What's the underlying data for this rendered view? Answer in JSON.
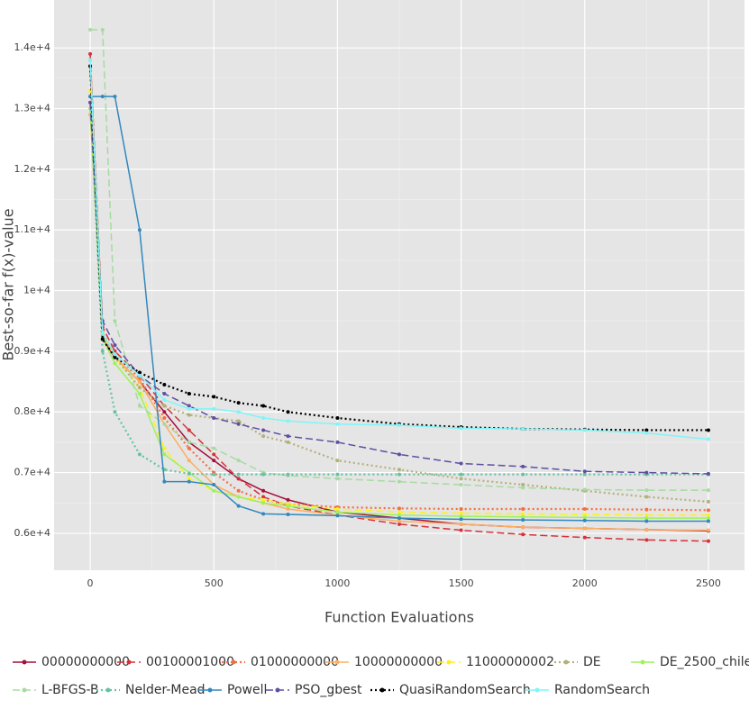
{
  "chart_data": {
    "type": "line",
    "xlabel": "Function Evaluations",
    "ylabel": "Best-so-far f(x)-value",
    "x": [
      0,
      50,
      100,
      200,
      300,
      400,
      500,
      600,
      700,
      800,
      1000,
      1250,
      1500,
      1750,
      2000,
      2250,
      2500
    ],
    "xlim": [
      -146,
      2646
    ],
    "xticks": [
      0,
      500,
      1000,
      1500,
      2000,
      2500
    ],
    "ylim": [
      5390,
      14790
    ],
    "yticks": [
      {
        "value": 6000,
        "label": "0.6e+4"
      },
      {
        "value": 7000,
        "label": "0.7e+4"
      },
      {
        "value": 8000,
        "label": "0.8e+4"
      },
      {
        "value": 9000,
        "label": "0.9e+4"
      },
      {
        "value": 10000,
        "label": "1e+4"
      },
      {
        "value": 11000,
        "label": "1.1e+4"
      },
      {
        "value": 12000,
        "label": "1.2e+4"
      },
      {
        "value": 13000,
        "label": "1.3e+4"
      },
      {
        "value": 14000,
        "label": "1.4e+4"
      }
    ],
    "grid": true,
    "legend": "bottom",
    "series": [
      {
        "name": "00000000000",
        "color": "#a50f3c",
        "dash": "solid",
        "values": [
          13700,
          9200,
          8900,
          8500,
          8000,
          7500,
          7200,
          6900,
          6700,
          6550,
          6350,
          6250,
          6150,
          6100,
          6080,
          6060,
          6040
        ]
      },
      {
        "name": "00100001000",
        "color": "#d7303a",
        "dash": "dash",
        "values": [
          13900,
          9400,
          9000,
          8600,
          8100,
          7700,
          7300,
          6900,
          6600,
          6450,
          6300,
          6150,
          6050,
          5980,
          5930,
          5890,
          5870
        ]
      },
      {
        "name": "01000000000",
        "color": "#f46d43",
        "dash": "dot",
        "values": [
          13800,
          9300,
          8950,
          8550,
          7900,
          7400,
          7000,
          6700,
          6550,
          6480,
          6430,
          6410,
          6400,
          6400,
          6400,
          6390,
          6380
        ]
      },
      {
        "name": "10000000000",
        "color": "#fdae61",
        "dash": "solid",
        "values": [
          12900,
          9300,
          8900,
          8500,
          7800,
          7200,
          6800,
          6600,
          6500,
          6400,
          6300,
          6200,
          6150,
          6100,
          6080,
          6060,
          6050
        ]
      },
      {
        "name": "11000000002",
        "color": "#fef01e",
        "dash": "dash",
        "values": [
          13300,
          9300,
          8900,
          8400,
          7400,
          6900,
          6700,
          6600,
          6550,
          6480,
          6400,
          6350,
          6330,
          6320,
          6310,
          6300,
          6300
        ]
      },
      {
        "name": "DE",
        "color": "#b5b07a",
        "dash": "dot",
        "values": [
          13100,
          9300,
          8900,
          8400,
          8100,
          7950,
          7900,
          7850,
          7600,
          7500,
          7200,
          7050,
          6900,
          6800,
          6700,
          6600,
          6520
        ]
      },
      {
        "name": "DE_2500_chile",
        "color": "#9ef25a",
        "dash": "solid",
        "values": [
          13000,
          9200,
          8800,
          8300,
          7300,
          7000,
          6700,
          6600,
          6500,
          6450,
          6350,
          6300,
          6280,
          6270,
          6260,
          6250,
          6250
        ]
      },
      {
        "name": "L-BFGS-B",
        "color": "#a6dba0",
        "dash": "dash",
        "values": [
          14300,
          14300,
          9500,
          8100,
          7800,
          7500,
          7400,
          7200,
          7000,
          6950,
          6900,
          6850,
          6800,
          6750,
          6720,
          6710,
          6710
        ]
      },
      {
        "name": "Nelder-Mead",
        "color": "#66c2a5",
        "dash": "dot",
        "values": [
          13200,
          9000,
          8000,
          7300,
          7050,
          6980,
          6970,
          6970,
          6970,
          6970,
          6970,
          6970,
          6970,
          6970,
          6970,
          6970,
          6970
        ]
      },
      {
        "name": "Powell",
        "color": "#3288bd",
        "dash": "solid",
        "values": [
          13200,
          13200,
          13200,
          11000,
          6850,
          6850,
          6800,
          6450,
          6320,
          6310,
          6290,
          6250,
          6230,
          6220,
          6210,
          6200,
          6200
        ]
      },
      {
        "name": "PSO_gbest",
        "color": "#5e4fa2",
        "dash": "dash",
        "values": [
          13100,
          9500,
          9100,
          8600,
          8300,
          8100,
          7900,
          7800,
          7700,
          7600,
          7500,
          7300,
          7150,
          7100,
          7020,
          7000,
          6980
        ]
      },
      {
        "name": "QuasiRandomSearch",
        "color": "#000000",
        "dash": "dot",
        "values": [
          13700,
          9200,
          8900,
          8650,
          8450,
          8300,
          8250,
          8150,
          8100,
          8000,
          7900,
          7800,
          7750,
          7720,
          7710,
          7700,
          7700
        ]
      },
      {
        "name": "RandomSearch",
        "color": "#7ff5f7",
        "dash": "solid",
        "values": [
          13800,
          9300,
          8950,
          8600,
          8200,
          8050,
          8050,
          8000,
          7900,
          7850,
          7800,
          7780,
          7730,
          7720,
          7700,
          7650,
          7550
        ]
      }
    ]
  }
}
